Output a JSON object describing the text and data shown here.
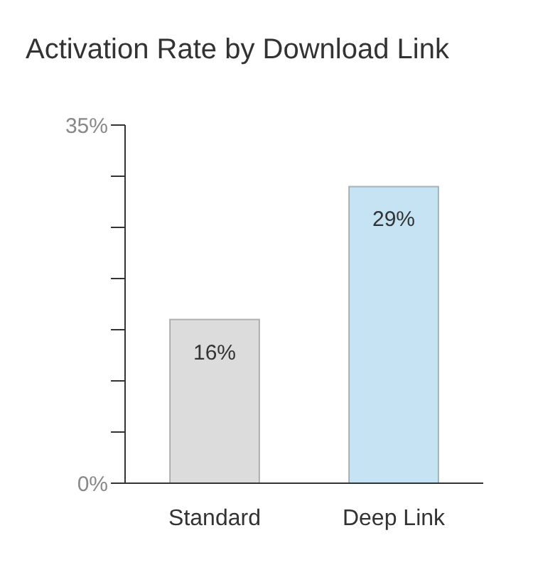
{
  "chart_data": {
    "type": "bar",
    "title": "Activation Rate by Download Link",
    "categories": [
      "Standard",
      "Deep Link"
    ],
    "values": [
      16,
      29
    ],
    "colors": [
      "#dcdcdc",
      "#c5e3f3"
    ],
    "value_labels": [
      "16%",
      "29%"
    ],
    "ylim": [
      0,
      35
    ],
    "yticks": [
      {
        "value": 0,
        "label": "0%"
      },
      {
        "value": 5,
        "label": null
      },
      {
        "value": 10,
        "label": null
      },
      {
        "value": 15,
        "label": null
      },
      {
        "value": 20,
        "label": null
      },
      {
        "value": 25,
        "label": null
      },
      {
        "value": 30,
        "label": null
      },
      {
        "value": 35,
        "label": "35%"
      }
    ],
    "grid": false
  }
}
